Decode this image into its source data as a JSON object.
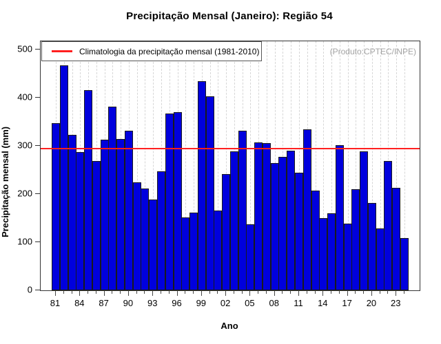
{
  "title": "Precipitação Mensal (Janeiro): Região 54",
  "annotation": "(Produto:CPTEC/INPE)",
  "legend": {
    "label": "Climatologia da precipitação mensal (1981-2010)"
  },
  "axes": {
    "y_label": "Precipitação mensal (mm)",
    "x_label": "Ano",
    "y_ticks": [
      0,
      100,
      200,
      300,
      400,
      500
    ],
    "x_tick_labels": [
      "81",
      "84",
      "87",
      "90",
      "93",
      "96",
      "99",
      "02",
      "05",
      "08",
      "11",
      "14",
      "17",
      "20",
      "23"
    ]
  },
  "colors": {
    "bar_fill": "#0000dd",
    "bar_border": "#1a1a1a",
    "climatology_line": "#ff1f1f",
    "grid": "#d6d6d6",
    "annotation_text": "#a3a3a3"
  },
  "chart_data": {
    "type": "bar",
    "title": "Precipitação Mensal (Janeiro): Região 54",
    "xlabel": "Ano",
    "ylabel": "Precipitação mensal (mm)",
    "ylim": [
      0,
      500
    ],
    "grid": "vertical-dashed",
    "legend_position": "top-left",
    "categories": [
      1981,
      1982,
      1983,
      1984,
      1985,
      1986,
      1987,
      1988,
      1989,
      1990,
      1991,
      1992,
      1993,
      1994,
      1995,
      1996,
      1997,
      1998,
      1999,
      2000,
      2001,
      2002,
      2003,
      2004,
      2005,
      2006,
      2007,
      2008,
      2009,
      2010,
      2011,
      2012,
      2013,
      2014,
      2015,
      2016,
      2017,
      2018,
      2019,
      2020,
      2021,
      2022,
      2023,
      2024
    ],
    "values": [
      347,
      467,
      323,
      287,
      416,
      268,
      313,
      381,
      314,
      331,
      224,
      211,
      188,
      247,
      367,
      370,
      151,
      161,
      434,
      403,
      166,
      242,
      288,
      332,
      137,
      307,
      305,
      264,
      277,
      290,
      244,
      334,
      207,
      150,
      160,
      301,
      139,
      210,
      288,
      181,
      128,
      268,
      213,
      108
    ],
    "reference_line": {
      "value": 294,
      "label": "Climatologia da precipitação mensal (1981-2010)"
    }
  }
}
